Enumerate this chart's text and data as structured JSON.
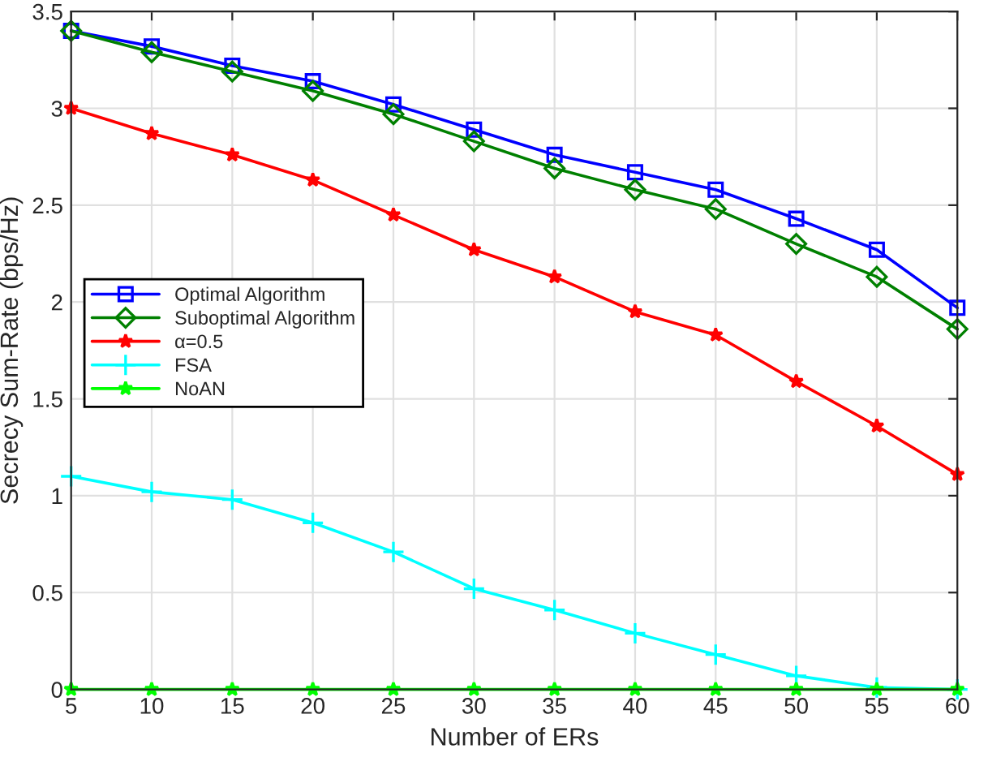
{
  "chart_data": {
    "type": "line",
    "xlabel": "Number of ERs",
    "ylabel": "Secrecy Sum-Rate (bps/Hz)",
    "x": [
      5,
      10,
      15,
      20,
      25,
      30,
      35,
      40,
      45,
      50,
      55,
      60
    ],
    "xlim": [
      5,
      60
    ],
    "xticks": [
      5,
      10,
      15,
      20,
      25,
      30,
      35,
      40,
      45,
      50,
      55,
      60
    ],
    "ylim": [
      0,
      3.5
    ],
    "yticks": [
      0,
      0.5,
      1,
      1.5,
      2,
      2.5,
      3,
      3.5
    ],
    "grid": true,
    "legend": "left",
    "line_style": "solid",
    "series": [
      {
        "name": "Optimal Algorithm",
        "color": "#0000ff",
        "marker": "square",
        "values": [
          3.4,
          3.32,
          3.22,
          3.14,
          3.02,
          2.89,
          2.76,
          2.67,
          2.58,
          2.43,
          2.27,
          1.97
        ]
      },
      {
        "name": "Suboptimal Algorithm",
        "color": "#008000",
        "marker": "diamond",
        "values": [
          3.4,
          3.29,
          3.19,
          3.09,
          2.97,
          2.83,
          2.69,
          2.58,
          2.48,
          2.3,
          2.13,
          1.86
        ]
      },
      {
        "name": "α=0.5",
        "color": "#ff0000",
        "marker": "star",
        "values": [
          3.0,
          2.87,
          2.76,
          2.63,
          2.45,
          2.27,
          2.13,
          1.95,
          1.83,
          1.59,
          1.36,
          1.11
        ]
      },
      {
        "name": "FSA",
        "color": "#00ffff",
        "marker": "cross",
        "values": [
          1.1,
          1.02,
          0.98,
          0.86,
          0.71,
          0.52,
          0.41,
          0.29,
          0.18,
          0.07,
          0.01,
          0.0
        ]
      },
      {
        "name": "NoAN",
        "color": "#00ff00",
        "marker": "star",
        "values": [
          0,
          0,
          0,
          0,
          0,
          0,
          0,
          0,
          0,
          0,
          0,
          0
        ]
      }
    ]
  }
}
